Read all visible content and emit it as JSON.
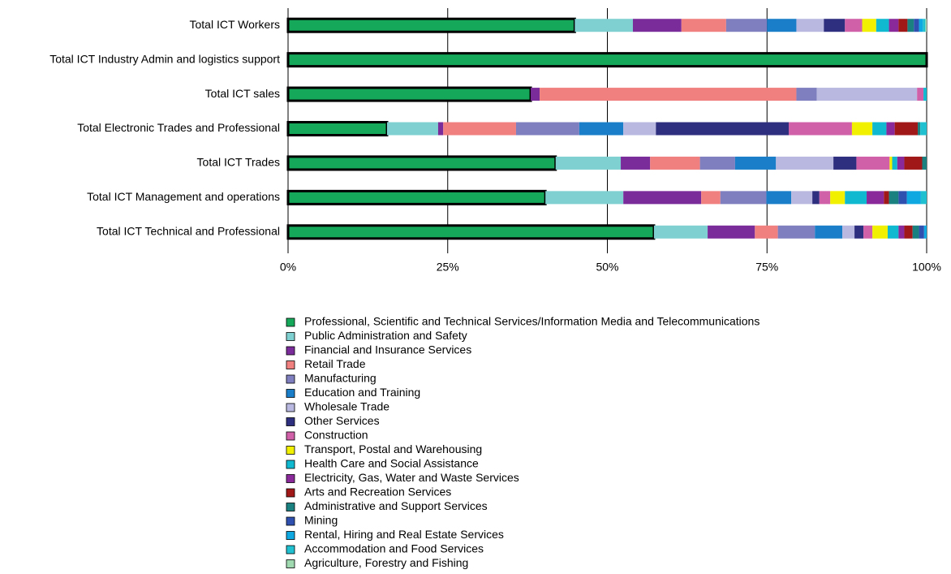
{
  "chart_data": {
    "type": "stacked_bar_horizontal",
    "categories": [
      "Total ICT Workers",
      "Total ICT Industry Admin and logistics support",
      "Total ICT sales",
      "Total Electronic Trades and Professional",
      "Total ICT  Trades",
      "Total ICT Management and operations",
      "Total ICT Technical and Professional"
    ],
    "xlim": [
      0,
      100
    ],
    "xticks": [
      {
        "value": 0,
        "label": "0%"
      },
      {
        "value": 25,
        "label": "25%"
      },
      {
        "value": 50,
        "label": "50%"
      },
      {
        "value": 75,
        "label": "75%"
      },
      {
        "value": 100,
        "label": "100%"
      }
    ],
    "grid": true,
    "series": [
      {
        "name": "Professional, Scientific and Technical Services/Information Media and Telecommunications",
        "color": "#16a85a",
        "values": [
          44.9,
          100,
          38,
          15.5,
          41.9,
          40.3,
          57.3
        ]
      },
      {
        "name": "Public Administration and Safety",
        "color": "#7fd0d0",
        "values": [
          9.1,
          0,
          0,
          8.0,
          10.2,
          12.2,
          8.4
        ]
      },
      {
        "name": "Financial and Insurance Services",
        "color": "#7b2c9b",
        "values": [
          7.6,
          0,
          1.4,
          0.8,
          4.6,
          12.2,
          7.4
        ]
      },
      {
        "name": "Retail Trade",
        "color": "#f08080",
        "values": [
          7.0,
          0,
          40.2,
          11.4,
          7.8,
          3.0,
          3.6
        ]
      },
      {
        "name": "Manufacturing",
        "color": "#7f7fbf",
        "values": [
          6.4,
          0,
          3.2,
          9.9,
          5.5,
          7.2,
          5.8
        ]
      },
      {
        "name": "Education and Training",
        "color": "#1a7fc8",
        "values": [
          4.6,
          0,
          0,
          6.9,
          6.4,
          3.9,
          4.3
        ]
      },
      {
        "name": "Wholesale Trade",
        "color": "#b8b8e0",
        "values": [
          4.3,
          0,
          15.7,
          5.1,
          9.0,
          3.3,
          1.9
        ]
      },
      {
        "name": "Other Services",
        "color": "#2f2f7f",
        "values": [
          3.3,
          0,
          0,
          20.8,
          3.6,
          1.1,
          1.4
        ]
      },
      {
        "name": "Construction",
        "color": "#d060a8",
        "values": [
          2.7,
          0,
          1.0,
          9.9,
          5.2,
          1.7,
          1.4
        ]
      },
      {
        "name": "Transport, Postal and Warehousing",
        "color": "#f0f000",
        "values": [
          2.2,
          0,
          0,
          3.2,
          0.4,
          2.3,
          2.4
        ]
      },
      {
        "name": "Health Care and Social Assistance",
        "color": "#10b8d0",
        "values": [
          2.0,
          0,
          0.5,
          2.2,
          0.8,
          3.4,
          1.7
        ]
      },
      {
        "name": "Electricity, Gas, Water and Waste Services",
        "color": "#8a2a9a",
        "values": [
          1.5,
          0,
          0,
          1.3,
          1.1,
          2.7,
          0.9
        ]
      },
      {
        "name": "Arts and Recreation Services",
        "color": "#a01818",
        "values": [
          1.4,
          0,
          0,
          3.6,
          2.8,
          0.8,
          1.3
        ]
      },
      {
        "name": "Administrative and Support Services",
        "color": "#1a8080",
        "values": [
          1.0,
          0,
          0,
          0.4,
          0.7,
          1.5,
          1.0
        ]
      },
      {
        "name": "Mining",
        "color": "#3050b0",
        "values": [
          0.8,
          0,
          0,
          0,
          0,
          1.3,
          0.8
        ]
      },
      {
        "name": "Rental, Hiring and Real Estate Services",
        "color": "#10a8e0",
        "values": [
          0.6,
          0,
          0,
          0,
          0,
          2.2,
          0.4
        ]
      },
      {
        "name": "Accommodation and Food Services",
        "color": "#20c0d0",
        "values": [
          0.4,
          0,
          0,
          1.0,
          0,
          0.9,
          0
        ]
      },
      {
        "name": "Agriculture, Forestry and Fishing",
        "color": "#a0d8b0",
        "values": [
          0.2,
          0,
          0,
          0,
          0,
          0,
          0
        ]
      }
    ]
  }
}
